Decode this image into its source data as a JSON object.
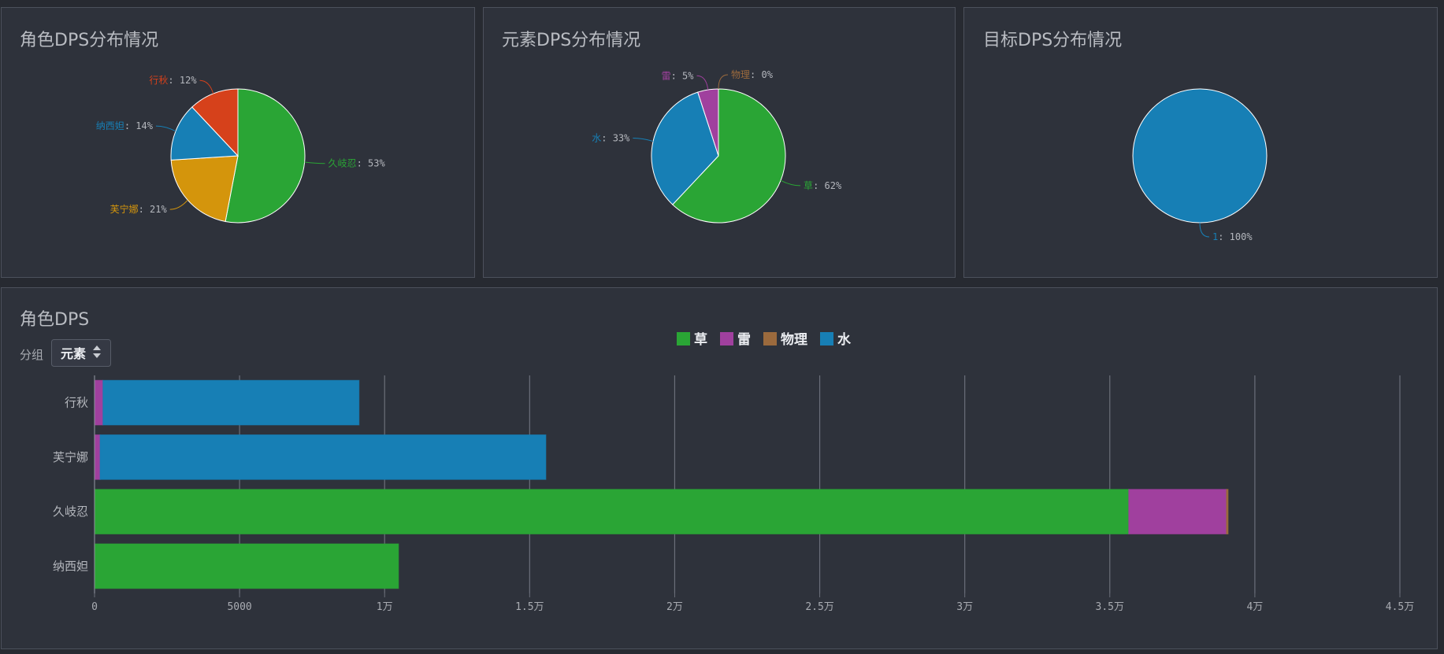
{
  "chart_data": [
    {
      "type": "pie",
      "title": "角色DPS分布情况",
      "categories": [
        "久岐忍",
        "芙宁娜",
        "纳西妲",
        "行秋"
      ],
      "values": [
        53,
        21,
        14,
        12
      ],
      "value_labels": [
        ": 53%",
        ": 21%",
        ": 14%",
        ": 12%"
      ],
      "colors": [
        "#2aa535",
        "#d4950c",
        "#177fb5",
        "#d6411b"
      ]
    },
    {
      "type": "pie",
      "title": "元素DPS分布情况",
      "categories": [
        "草",
        "水",
        "雷",
        "物理"
      ],
      "values": [
        62,
        33,
        5,
        0
      ],
      "value_labels": [
        ": 62%",
        ": 33%",
        ": 5%",
        ": 0%"
      ],
      "colors": [
        "#2aa535",
        "#177fb5",
        "#a0409e",
        "#9b6a3d"
      ]
    },
    {
      "type": "pie",
      "title": "目标DPS分布情况",
      "categories": [
        "1"
      ],
      "values": [
        100
      ],
      "value_labels": [
        ": 100%"
      ],
      "colors": [
        "#177fb5"
      ]
    },
    {
      "type": "hbar-stacked",
      "title": "角色DPS",
      "categories": [
        "行秋",
        "芙宁娜",
        "久岐忍",
        "纳西妲"
      ],
      "series": [
        {
          "name": "草",
          "color": "#2aa535",
          "values": [
            0,
            0,
            35650,
            10480
          ]
        },
        {
          "name": "雷",
          "color": "#a0409e",
          "values": [
            290,
            190,
            3370,
            0
          ]
        },
        {
          "name": "物理",
          "color": "#9b6a3d",
          "values": [
            0,
            0,
            60,
            0
          ]
        },
        {
          "name": "水",
          "color": "#177fb5",
          "values": [
            8830,
            15370,
            0,
            0
          ]
        }
      ],
      "xlim": [
        0,
        45000
      ],
      "xticks": [
        0,
        5000,
        {
          "value": 10000,
          "label": "1万"
        },
        {
          "value": 15000,
          "label": "1.5万"
        },
        {
          "value": 20000,
          "label": "2万"
        },
        {
          "value": 25000,
          "label": "2.5万"
        },
        {
          "value": 30000,
          "label": "3万"
        },
        {
          "value": 35000,
          "label": "3.5万"
        },
        {
          "value": 40000,
          "label": "4万"
        },
        {
          "value": 45000,
          "label": "4.5万"
        }
      ],
      "grid": true,
      "legend": "top"
    }
  ],
  "controls": {
    "group_label": "分组",
    "group_value": "元素"
  }
}
